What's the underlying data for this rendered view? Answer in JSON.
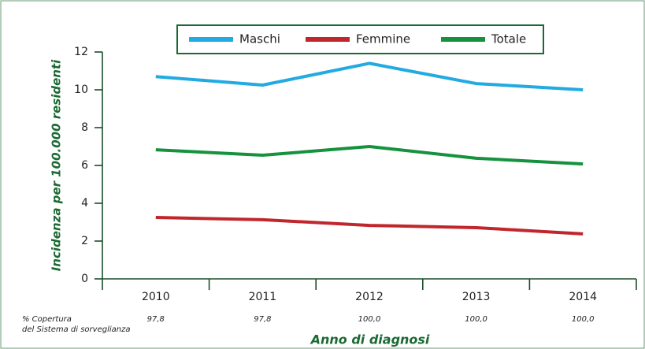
{
  "chart_data": {
    "type": "line",
    "categories": [
      "2010",
      "2011",
      "2012",
      "2013",
      "2014"
    ],
    "series": [
      {
        "name": "Maschi",
        "color": "#22aae1",
        "values": [
          10.7,
          10.25,
          11.4,
          10.33,
          10.0
        ]
      },
      {
        "name": "Femmine",
        "color": "#c0272d",
        "values": [
          3.25,
          3.13,
          2.83,
          2.71,
          2.38
        ]
      },
      {
        "name": "Totale",
        "color": "#16923e",
        "values": [
          6.83,
          6.54,
          7.0,
          6.38,
          6.08
        ]
      }
    ],
    "ylim": [
      0,
      12
    ],
    "yticks": [
      0,
      2,
      4,
      6,
      8,
      10,
      12
    ],
    "y_label": "Incidenza per 100.000 residenti",
    "x_label": "Anno di diagnosi",
    "coverage": {
      "label": [
        "% Copertura",
        "del Sistema di sorveglianza"
      ],
      "values": [
        "97,8",
        "97,8",
        "100,0",
        "100,0",
        "100,0"
      ]
    },
    "legend": "top",
    "grid": false
  }
}
